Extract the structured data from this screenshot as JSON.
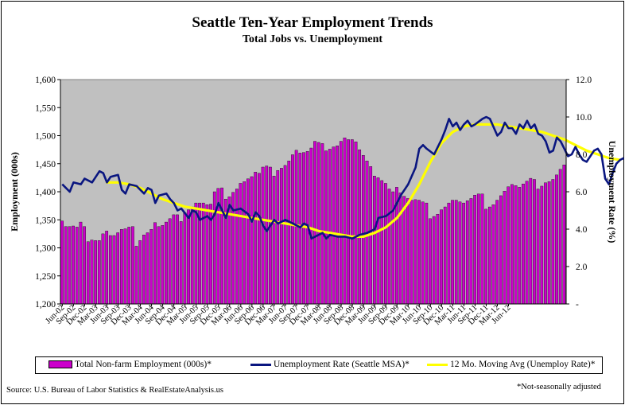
{
  "chart_data": {
    "type": "bar",
    "title": "Seattle Ten-Year Employment Trends",
    "subtitle": "Total Jobs vs. Unemployment",
    "ylabel": "Employment (000s)",
    "y2label": "Unemployment Rate (%)",
    "ylim": [
      1200,
      1600
    ],
    "y2lim": [
      0,
      12
    ],
    "yticks": [
      "1,200",
      "1,250",
      "1,300",
      "1,350",
      "1,400",
      "1,450",
      "1,500",
      "1,550",
      "1,600"
    ],
    "y2ticks": [
      "-",
      "2.0",
      "4.0",
      "6.0",
      "8.0",
      "10.0",
      "12.0"
    ],
    "xticks": [
      "Jun-02",
      "Sep-02",
      "Dec-02",
      "Mar-03",
      "Jun-03",
      "Sep-03",
      "Dec-03",
      "Mar-04",
      "Jun-04",
      "Sep-04",
      "Dec-04",
      "Mar-05",
      "Jun-05",
      "Sep-05",
      "Dec-05",
      "Mar-06",
      "Jun-06",
      "Sep-06",
      "Dec-06",
      "Mar-07",
      "Jun-07",
      "Sep-07",
      "Dec-07",
      "Mar-08",
      "Jun-08",
      "Sep-08",
      "Dec-08",
      "Mar-09",
      "Jun-09",
      "Sep-09",
      "Dec-09",
      "Mar-10",
      "Jun-10",
      "Sep-10",
      "Dec-10",
      "Mar-11",
      "Jun-11",
      "Sep-11",
      "Dec-11",
      "Mar-12",
      "Jun-12"
    ],
    "background": "#c0c0c0",
    "grid": false,
    "legend_position": "bottom",
    "series": [
      {
        "name": "Total Non-farm Employment (000s)*",
        "kind": "bar",
        "axis": "left",
        "color": "#cc00cc",
        "values": [
          1348,
          1338,
          1338,
          1339,
          1337,
          1346,
          1338,
          1311,
          1314,
          1313,
          1313,
          1325,
          1330,
          1322,
          1322,
          1327,
          1333,
          1334,
          1337,
          1338,
          1303,
          1313,
          1323,
          1327,
          1333,
          1345,
          1338,
          1340,
          1346,
          1352,
          1359,
          1359,
          1347,
          1363,
          1368,
          1373,
          1380,
          1380,
          1380,
          1377,
          1378,
          1400,
          1406,
          1407,
          1387,
          1391,
          1399,
          1405,
          1415,
          1418,
          1423,
          1427,
          1435,
          1433,
          1444,
          1446,
          1444,
          1428,
          1438,
          1442,
          1447,
          1455,
          1466,
          1474,
          1469,
          1470,
          1472,
          1478,
          1490,
          1488,
          1486,
          1473,
          1476,
          1480,
          1482,
          1490,
          1496,
          1493,
          1493,
          1489,
          1475,
          1465,
          1455,
          1445,
          1428,
          1425,
          1420,
          1415,
          1405,
          1400,
          1408,
          1398,
          1392,
          1388,
          1385,
          1386,
          1385,
          1382,
          1380,
          1352,
          1356,
          1360,
          1368,
          1373,
          1380,
          1385,
          1385,
          1382,
          1380,
          1384,
          1388,
          1394,
          1396,
          1396,
          1369,
          1373,
          1377,
          1385,
          1393,
          1401,
          1409,
          1413,
          1411,
          1408,
          1414,
          1419,
          1424,
          1422,
          1405,
          1410,
          1416,
          1418,
          1422,
          1430,
          1440,
          1448
        ]
      },
      {
        "name": "Unemployment Rate (Seattle MSA)*",
        "kind": "line",
        "axis": "right",
        "color": "#0a1680",
        "points": [
          [
            0,
            6.4
          ],
          [
            2,
            6.0
          ],
          [
            3,
            6.5
          ],
          [
            5,
            6.4
          ],
          [
            6,
            6.7
          ],
          [
            8,
            6.5
          ],
          [
            10,
            7.1
          ],
          [
            11,
            7.0
          ],
          [
            12,
            6.5
          ],
          [
            13,
            6.8
          ],
          [
            15,
            6.9
          ],
          [
            16,
            6.1
          ],
          [
            17,
            5.9
          ],
          [
            18,
            6.4
          ],
          [
            20,
            6.3
          ],
          [
            22,
            5.9
          ],
          [
            23,
            6.2
          ],
          [
            24,
            6.1
          ],
          [
            25,
            5.4
          ],
          [
            26,
            5.8
          ],
          [
            28,
            5.9
          ],
          [
            29,
            5.6
          ],
          [
            30,
            5.4
          ],
          [
            31,
            5.0
          ],
          [
            32,
            5.1
          ],
          [
            34,
            4.6
          ],
          [
            35,
            5.0
          ],
          [
            36,
            4.9
          ],
          [
            37,
            4.5
          ],
          [
            39,
            4.7
          ],
          [
            40,
            4.5
          ],
          [
            41,
            4.8
          ],
          [
            42,
            5.4
          ],
          [
            43,
            5.0
          ],
          [
            44,
            4.6
          ],
          [
            45,
            5.3
          ],
          [
            46,
            5.0
          ],
          [
            48,
            5.1
          ],
          [
            50,
            4.8
          ],
          [
            51,
            4.4
          ],
          [
            52,
            4.9
          ],
          [
            53,
            4.7
          ],
          [
            54,
            4.2
          ],
          [
            55,
            3.9
          ],
          [
            57,
            4.5
          ],
          [
            58,
            4.3
          ],
          [
            60,
            4.5
          ],
          [
            62,
            4.3
          ],
          [
            64,
            4.1
          ],
          [
            65,
            4.3
          ],
          [
            66,
            4.2
          ],
          [
            67,
            3.5
          ],
          [
            68,
            3.6
          ],
          [
            70,
            3.8
          ],
          [
            71,
            3.5
          ],
          [
            72,
            3.7
          ],
          [
            74,
            3.6
          ],
          [
            76,
            3.6
          ],
          [
            78,
            3.5
          ],
          [
            80,
            3.7
          ],
          [
            82,
            3.8
          ],
          [
            84,
            4.0
          ],
          [
            85,
            4.6
          ],
          [
            87,
            4.7
          ],
          [
            89,
            5.0
          ],
          [
            91,
            5.8
          ],
          [
            93,
            6.4
          ],
          [
            95,
            7.3
          ],
          [
            96,
            8.3
          ],
          [
            97,
            8.5
          ],
          [
            98,
            8.3
          ],
          [
            100,
            8.0
          ],
          [
            102,
            8.8
          ],
          [
            103,
            9.3
          ],
          [
            104,
            9.9
          ],
          [
            105,
            9.5
          ],
          [
            106,
            9.7
          ],
          [
            107,
            9.3
          ],
          [
            108,
            9.6
          ],
          [
            109,
            9.8
          ],
          [
            110,
            9.5
          ],
          [
            111,
            9.6
          ],
          [
            113,
            9.9
          ],
          [
            114,
            10.0
          ],
          [
            115,
            9.9
          ],
          [
            117,
            9.0
          ],
          [
            118,
            9.2
          ],
          [
            119,
            9.7
          ],
          [
            120,
            9.4
          ],
          [
            121,
            9.4
          ],
          [
            122,
            9.1
          ],
          [
            123,
            9.6
          ],
          [
            124,
            9.4
          ],
          [
            125,
            9.8
          ],
          [
            126,
            9.4
          ],
          [
            127,
            9.6
          ],
          [
            128,
            9.1
          ],
          [
            129,
            9.0
          ],
          [
            130,
            8.7
          ],
          [
            131,
            8.1
          ],
          [
            132,
            8.2
          ],
          [
            133,
            8.9
          ],
          [
            134,
            8.7
          ],
          [
            135,
            8.3
          ],
          [
            136,
            7.9
          ],
          [
            137,
            8.0
          ],
          [
            138,
            8.4
          ],
          [
            139,
            8.0
          ],
          [
            140,
            7.7
          ],
          [
            141,
            7.6
          ],
          [
            142,
            7.9
          ],
          [
            143,
            8.2
          ],
          [
            144,
            8.3
          ],
          [
            145,
            8.0
          ],
          [
            146,
            6.7
          ],
          [
            147,
            6.4
          ],
          [
            148,
            7.0
          ],
          [
            149,
            7.5
          ],
          [
            150,
            7.7
          ],
          [
            151,
            7.8
          ]
        ]
      },
      {
        "name": "12 Mo. Moving Avg (Unemploy Rate)*",
        "kind": "line",
        "axis": "right",
        "color": "#ffff00",
        "points": [
          [
            12,
            6.5
          ],
          [
            15,
            6.5
          ],
          [
            18,
            6.4
          ],
          [
            21,
            6.2
          ],
          [
            24,
            5.9
          ],
          [
            27,
            5.6
          ],
          [
            30,
            5.4
          ],
          [
            33,
            5.2
          ],
          [
            36,
            5.1
          ],
          [
            39,
            5.0
          ],
          [
            42,
            4.9
          ],
          [
            45,
            4.8
          ],
          [
            48,
            4.7
          ],
          [
            51,
            4.6
          ],
          [
            54,
            4.5
          ],
          [
            57,
            4.4
          ],
          [
            60,
            4.3
          ],
          [
            63,
            4.2
          ],
          [
            66,
            4.1
          ],
          [
            69,
            3.9
          ],
          [
            72,
            3.8
          ],
          [
            75,
            3.7
          ],
          [
            78,
            3.6
          ],
          [
            81,
            3.6
          ],
          [
            84,
            3.8
          ],
          [
            87,
            4.1
          ],
          [
            90,
            4.6
          ],
          [
            93,
            5.4
          ],
          [
            96,
            6.4
          ],
          [
            99,
            7.6
          ],
          [
            102,
            8.6
          ],
          [
            105,
            9.2
          ],
          [
            108,
            9.5
          ],
          [
            111,
            9.6
          ],
          [
            114,
            9.6
          ],
          [
            117,
            9.6
          ],
          [
            120,
            9.5
          ],
          [
            123,
            9.4
          ],
          [
            126,
            9.3
          ],
          [
            129,
            9.2
          ],
          [
            132,
            9.0
          ],
          [
            135,
            8.8
          ],
          [
            138,
            8.5
          ],
          [
            141,
            8.2
          ],
          [
            144,
            8.0
          ],
          [
            147,
            7.8
          ],
          [
            150,
            7.7
          ]
        ]
      }
    ]
  },
  "legend": {
    "item1": "Total Non-farm Employment (000s)*",
    "item2": "Unemployment Rate (Seattle MSA)*",
    "item3": "12 Mo. Moving Avg (Unemploy Rate)*"
  },
  "source": "Source: U.S. Bureau of Labor Statistics & RealEstateAnalysis.us",
  "footnote": "*Not-seasonally adjusted"
}
